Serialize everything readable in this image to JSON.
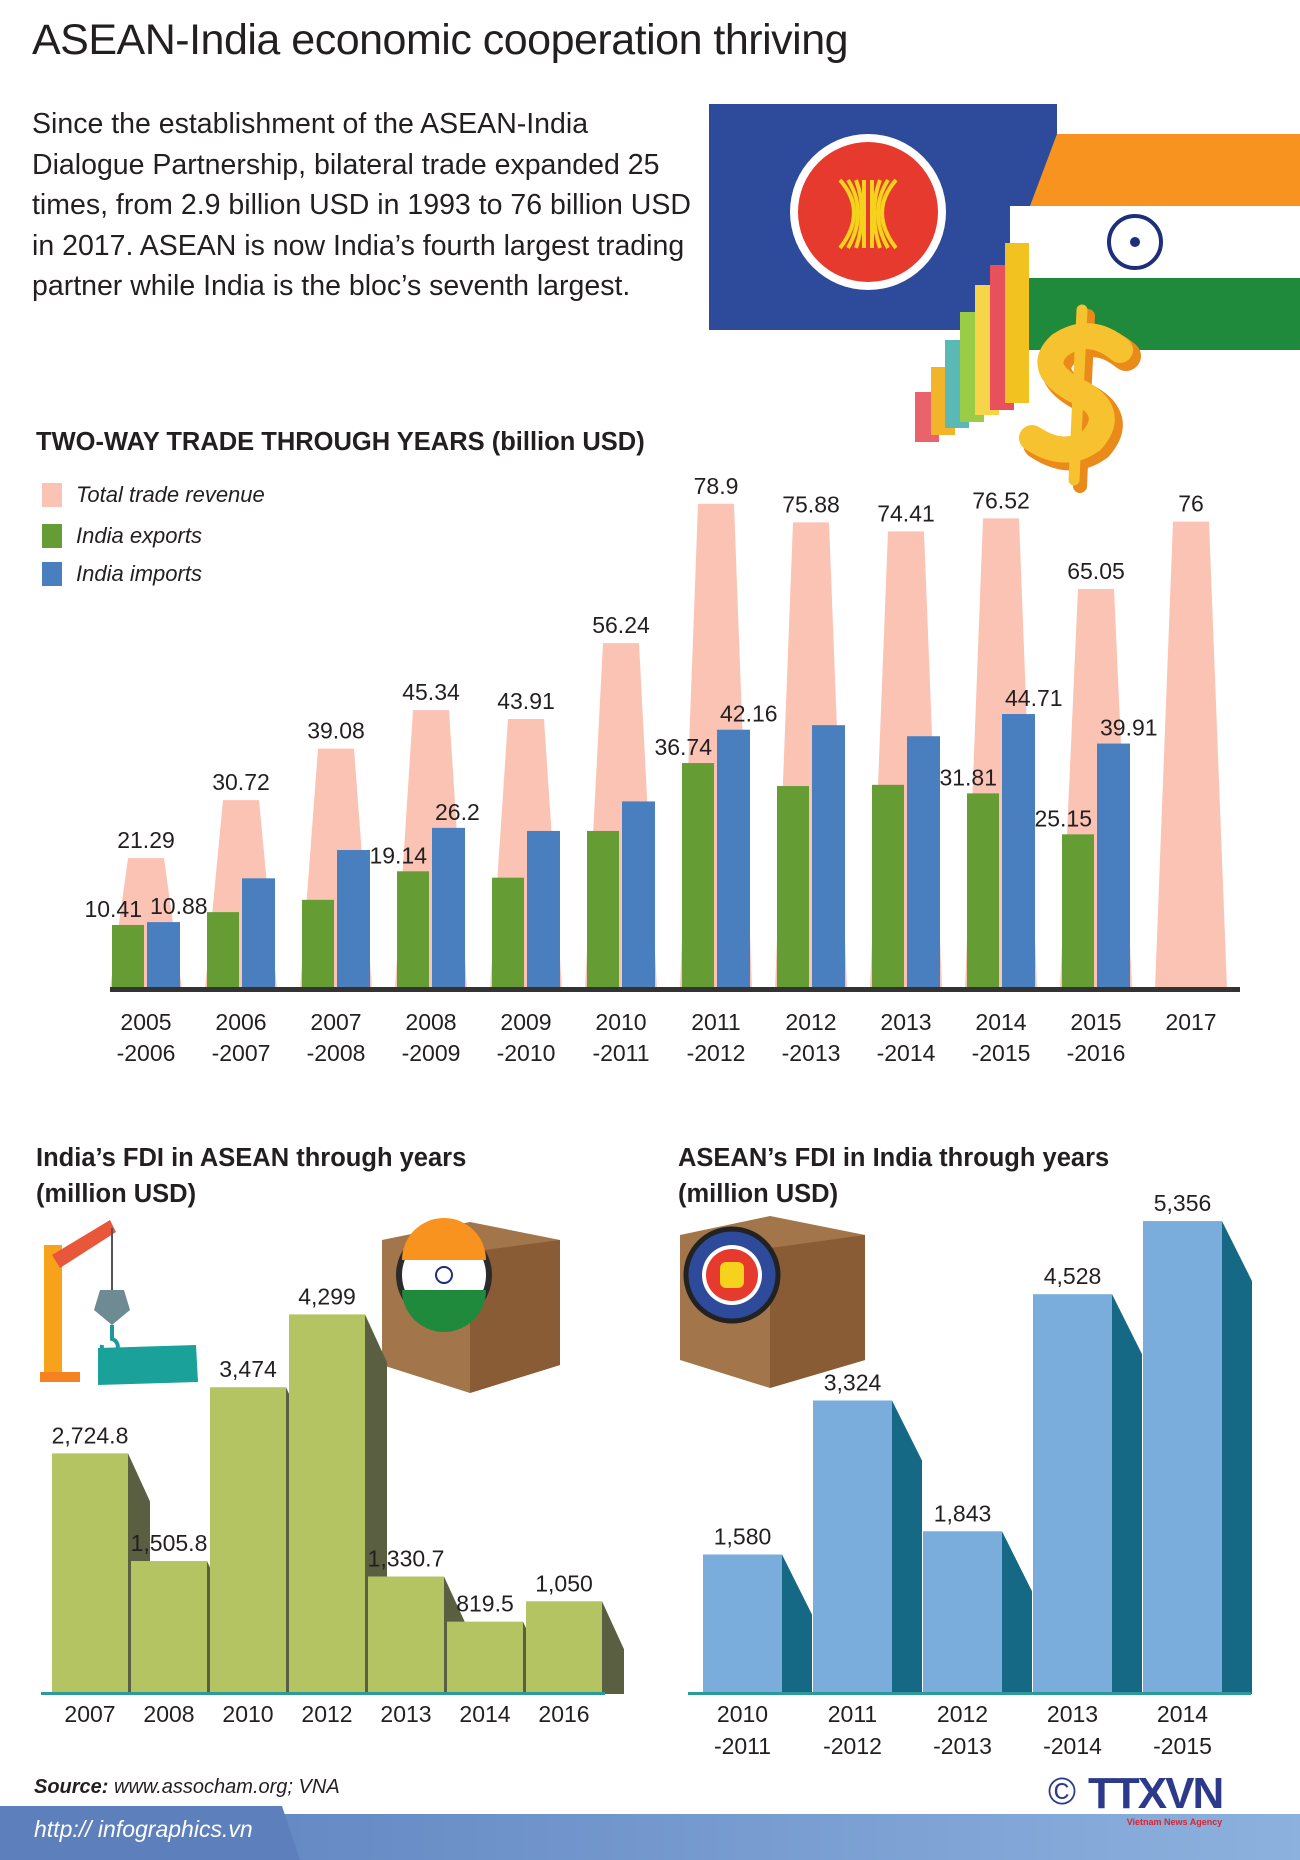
{
  "title": "ASEAN-India economic cooperation thriving",
  "intro": "Since the establishment of the ASEAN-India Dialogue Partnership, bilateral trade expanded 25 times, from 2.9 billion USD in 1993 to 76 billion USD in 2017. ASEAN is now India’s fourth largest trading partner while India is the bloc’s seventh largest.",
  "colors": {
    "total": "#fbc3b4",
    "exports": "#659d34",
    "imports": "#4a7fbf",
    "fdi_india_front": "#b5c463",
    "fdi_india_side": "#5b5f42",
    "fdi_asean_front": "#7aacdc",
    "fdi_asean_side": "#166985"
  },
  "chart_data": [
    {
      "type": "bar",
      "title": "TWO-WAY TRADE THROUGH YEARS (billion USD)",
      "legend_position": "top-left",
      "categories": [
        [
          "2005",
          "-2006"
        ],
        [
          "2006",
          "-2007"
        ],
        [
          "2007",
          "-2008"
        ],
        [
          "2008",
          "-2009"
        ],
        [
          "2009",
          "-2010"
        ],
        [
          "2010",
          "-2011"
        ],
        [
          "2011",
          "-2012"
        ],
        [
          "2012",
          "-2013"
        ],
        [
          "2013",
          "-2014"
        ],
        [
          "2014",
          "-2015"
        ],
        [
          "2015",
          "-2016"
        ],
        [
          "2017",
          ""
        ]
      ],
      "series": [
        {
          "name": "Total trade revenue",
          "values": [
            21.29,
            30.72,
            39.08,
            45.34,
            43.91,
            56.24,
            78.9,
            75.88,
            74.41,
            76.52,
            65.05,
            76
          ],
          "labels": [
            "21.29",
            "30.72",
            "39.08",
            "45.34",
            "43.91",
            "56.24",
            "78.9",
            "75.88",
            "74.41",
            "76.52",
            "65.05",
            "76"
          ]
        },
        {
          "name": "India exports",
          "values": [
            10.41,
            12.5,
            14.5,
            19.14,
            18.1,
            25.7,
            36.74,
            33.0,
            33.2,
            31.81,
            25.15,
            null
          ],
          "labels": [
            "10.41",
            null,
            null,
            "19.14",
            null,
            null,
            "36.74",
            null,
            null,
            "31.81",
            "25.15",
            null
          ]
        },
        {
          "name": "India imports",
          "values": [
            10.88,
            18.0,
            22.6,
            26.2,
            25.7,
            30.5,
            42.16,
            42.9,
            41.1,
            44.71,
            39.91,
            null
          ],
          "labels": [
            "10.88",
            null,
            null,
            "26.2",
            null,
            null,
            "42.16",
            null,
            null,
            "44.71",
            "39.91",
            null
          ]
        }
      ],
      "ylim": [
        0,
        80
      ]
    },
    {
      "type": "bar",
      "title": "India’s FDI in ASEAN through years (million USD)",
      "categories": [
        "2007",
        "2008",
        "2010",
        "2012",
        "2013",
        "2014",
        "2016"
      ],
      "values": [
        2724.8,
        1505.8,
        3474,
        4299,
        1330.7,
        819.5,
        1050
      ],
      "labels": [
        "2,724.8",
        "1,505.8",
        "3,474",
        "4,299",
        "1,330.7",
        "819.5",
        "1,050"
      ]
    },
    {
      "type": "bar",
      "title": "ASEAN’s FDI in India through years (million USD)",
      "categories": [
        [
          "2010",
          "-2011"
        ],
        [
          "2011",
          "-2012"
        ],
        [
          "2012",
          "-2013"
        ],
        [
          "2013",
          "-2014"
        ],
        [
          "2014",
          "-2015"
        ]
      ],
      "values": [
        1580,
        3324,
        1843,
        4528,
        5356
      ],
      "labels": [
        "1,580",
        "3,324",
        "1,843",
        "4,528",
        "5,356"
      ]
    }
  ],
  "trade_title": "TWO-WAY TRADE THROUGH YEARS (billion USD)",
  "legend": [
    "Total trade revenue",
    "India exports",
    "India imports"
  ],
  "fdi1_title": [
    "India’s FDI in ASEAN through years",
    "(million USD)"
  ],
  "fdi2_title": [
    "ASEAN’s FDI in India through years",
    "(million USD)"
  ],
  "source": {
    "label": "Source:",
    "text": " www.assocham.org; VNA"
  },
  "footer_url": "http:// infographics.vn",
  "logo": {
    "copyright": "©",
    "name": "TTXVN",
    "subtitle": "Vietnam News Agency"
  }
}
